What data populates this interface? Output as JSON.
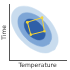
{
  "chart_data": {
    "type": "scatter",
    "x_label": "Temperature",
    "y_label": "Time",
    "xlim": [
      0,
      10
    ],
    "ylim": [
      0,
      10
    ],
    "tick_labels": false,
    "grid": false,
    "series": [
      {
        "type": "area",
        "color": "#c9dcee",
        "x": [
          8.04,
          8.62,
          8.11,
          6.62,
          4.57,
          2.5,
          0.96,
          0.38,
          0.89,
          2.38,
          4.43,
          6.5
        ],
        "values": [
          1.96,
          3.5,
          5.57,
          7.62,
          9.11,
          9.62,
          9.04,
          7.5,
          5.43,
          3.38,
          1.89,
          1.38
        ]
      },
      {
        "type": "area",
        "color": "#7ea6d6",
        "x": [
          7.05,
          7.47,
          7.1,
          6.03,
          4.55,
          3.06,
          1.95,
          1.53,
          1.9,
          2.97,
          4.45,
          5.94
        ],
        "values": [
          2.95,
          4.06,
          5.55,
          7.03,
          8.1,
          8.47,
          8.05,
          6.94,
          5.45,
          3.97,
          2.9,
          2.53
        ]
      },
      {
        "type": "area",
        "color": "#2e5fa8",
        "x": [
          6.09,
          6.35,
          6.12,
          5.45,
          4.53,
          3.6,
          2.91,
          2.65,
          2.88,
          3.55,
          4.47,
          5.4
        ],
        "values": [
          3.91,
          4.6,
          5.53,
          6.45,
          7.12,
          7.35,
          7.09,
          6.4,
          5.47,
          4.55,
          3.88,
          3.65
        ]
      },
      {
        "type": "line",
        "color": "#f2d43a",
        "marker": "circle",
        "x": [
          3.2,
          5.8,
          6.2,
          3.8
        ],
        "values": [
          6.8,
          7.6,
          5.2,
          4.6
        ]
      }
    ]
  }
}
